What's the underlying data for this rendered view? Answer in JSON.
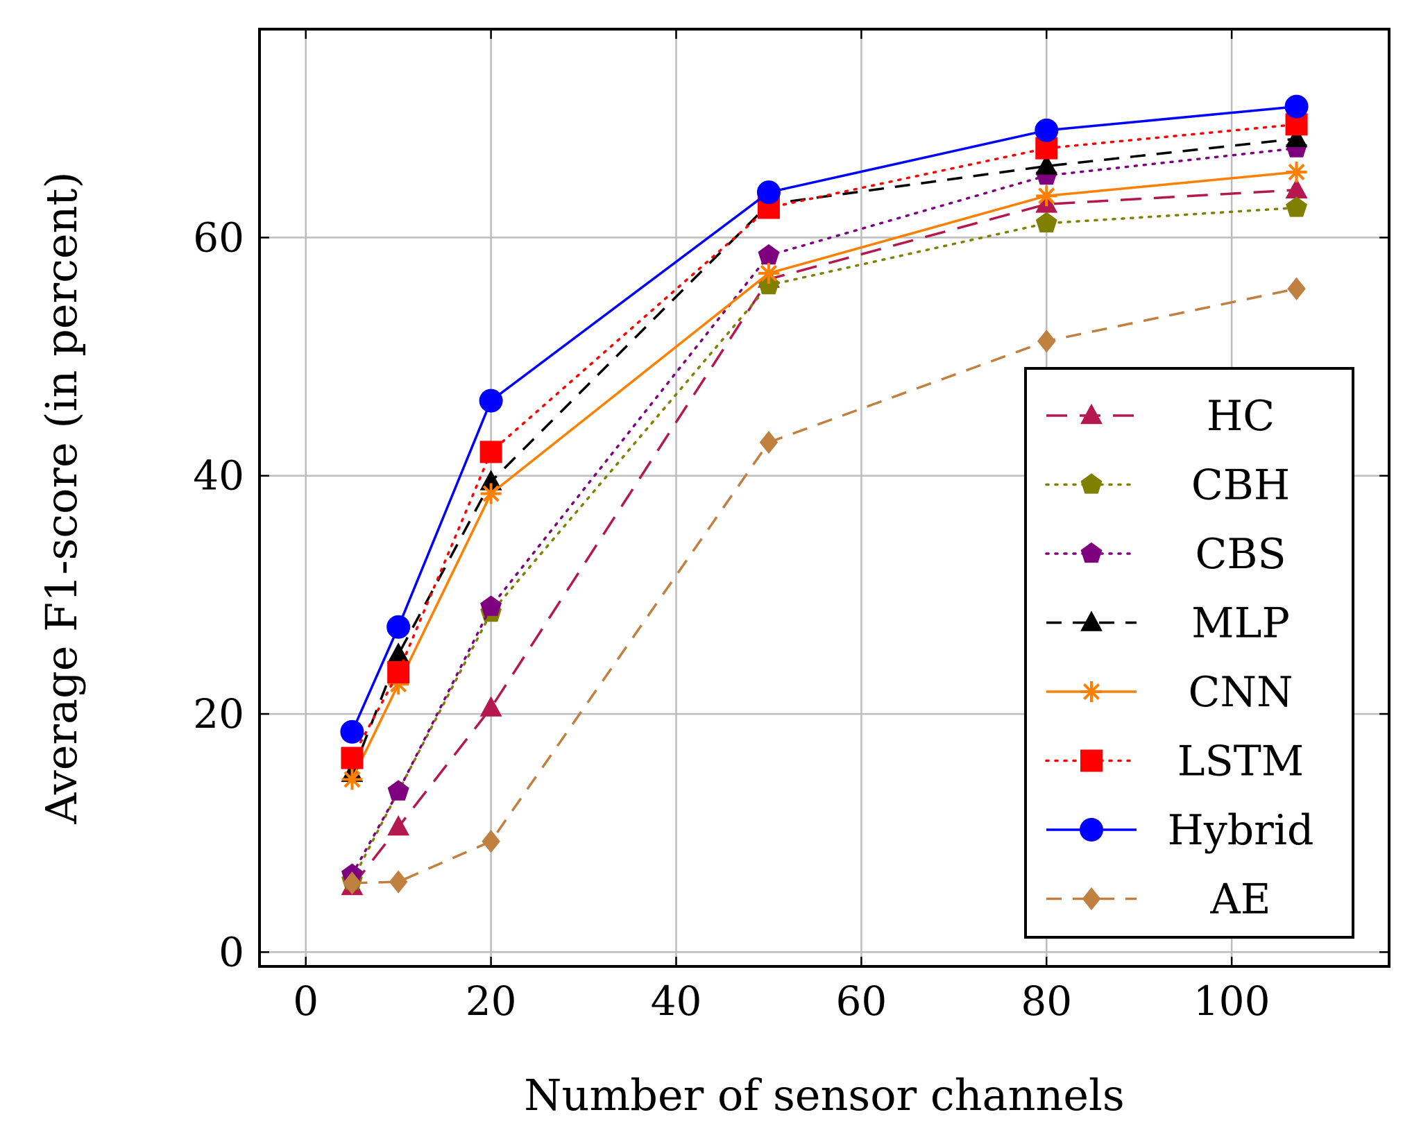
{
  "chart_data": {
    "type": "line",
    "title": "",
    "xlabel": "Number of sensor channels",
    "ylabel": "Average F1-score (in percent)",
    "xlim": [
      -5,
      117
    ],
    "ylim": [
      -1.2,
      77.5
    ],
    "xticks": [
      0,
      20,
      40,
      60,
      80,
      100
    ],
    "yticks": [
      0,
      20,
      40,
      60
    ],
    "grid": true,
    "legend_position": "bottom-right",
    "x": [
      5,
      10,
      20,
      50,
      80,
      107
    ],
    "series": [
      {
        "name": "HC",
        "values": [
          5.5,
          10.5,
          20.5,
          56.5,
          62.8,
          64
        ],
        "color": "#b5174f",
        "dash": "long-dash",
        "marker": "triangle"
      },
      {
        "name": "CBH",
        "values": [
          6,
          13.5,
          28.5,
          56,
          61.2,
          62.5
        ],
        "color": "#808000",
        "dash": "dotted",
        "marker": "pentagon"
      },
      {
        "name": "CBS",
        "values": [
          6.5,
          13.5,
          29,
          58.5,
          65.2,
          67.5
        ],
        "color": "#7f007f",
        "dash": "dotted",
        "marker": "pentagon"
      },
      {
        "name": "MLP",
        "values": [
          15,
          25,
          39.5,
          62.8,
          66,
          68.3
        ],
        "color": "#000000",
        "dash": "dashed",
        "marker": "triangle"
      },
      {
        "name": "CNN",
        "values": [
          14.5,
          22.5,
          38.5,
          57,
          63.5,
          65.5
        ],
        "color": "#ff8000",
        "dash": "solid",
        "marker": "asterisk"
      },
      {
        "name": "LSTM",
        "values": [
          16.3,
          23.5,
          42,
          62.5,
          67.5,
          69.5
        ],
        "color": "#ff0000",
        "dash": "dotted",
        "marker": "square"
      },
      {
        "name": "Hybrid",
        "values": [
          18.5,
          27.3,
          46.3,
          63.8,
          69,
          71
        ],
        "color": "#0000ff",
        "dash": "solid",
        "marker": "circle"
      },
      {
        "name": "AE",
        "values": [
          5.8,
          5.9,
          9.3,
          42.8,
          51.3,
          55.7
        ],
        "color": "#c08040",
        "dash": "dashed",
        "marker": "diamond"
      }
    ]
  }
}
